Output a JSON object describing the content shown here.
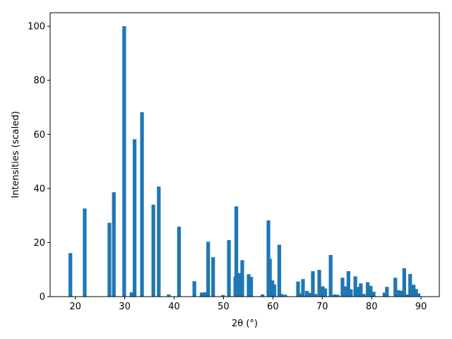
{
  "chart_data": {
    "type": "bar",
    "xlabel": "2θ (°)",
    "ylabel": "Intensities (scaled)",
    "title": "",
    "xlim": [
      14.9,
      93.7
    ],
    "ylim": [
      0,
      105
    ],
    "xticks": [
      20,
      30,
      40,
      50,
      60,
      70,
      80,
      90
    ],
    "yticks": [
      0,
      20,
      40,
      60,
      80,
      100
    ],
    "bar_width_deg": 0.75,
    "grid": false,
    "legend": "none",
    "color": "#1f77b4",
    "series": [
      {
        "x": [
          19.0,
          21.9,
          26.9,
          27.8,
          29.9,
          31.4,
          32.0,
          33.5,
          35.8,
          36.9,
          38.9,
          41.0,
          44.1,
          45.6,
          46.3,
          46.9,
          47.9,
          49.9,
          51.1,
          52.4,
          52.6,
          53.3,
          53.8,
          55.1,
          55.6,
          57.9,
          59.1,
          59.4,
          59.9,
          60.3,
          61.3,
          61.7,
          62.5,
          65.1,
          65.6,
          66.1,
          66.9,
          67.4,
          68.1,
          68.6,
          69.4,
          70.1,
          70.6,
          71.7,
          72.5,
          73.1,
          74.1,
          74.6,
          75.3,
          75.8,
          76.7,
          77.3,
          77.8,
          78.4,
          79.2,
          79.8,
          80.4,
          82.6,
          83.1,
          84.8,
          85.3,
          85.9,
          86.6,
          87.3,
          87.8,
          88.5,
          89.0,
          89.5
        ],
        "values": [
          16.1,
          32.6,
          27.3,
          38.6,
          100.0,
          1.6,
          58.2,
          68.2,
          34.0,
          40.7,
          0.8,
          25.9,
          5.7,
          1.5,
          1.6,
          20.3,
          14.6,
          0.6,
          20.9,
          7.4,
          33.4,
          8.7,
          13.5,
          8.3,
          7.3,
          0.8,
          28.2,
          14.0,
          6.0,
          4.5,
          19.2,
          1.0,
          0.7,
          5.6,
          1.2,
          6.5,
          2.1,
          1.4,
          9.4,
          1.0,
          9.9,
          3.8,
          3.0,
          15.4,
          0.8,
          0.7,
          7.0,
          3.8,
          9.4,
          2.7,
          7.5,
          3.6,
          4.9,
          1.0,
          5.3,
          4.0,
          1.8,
          1.5,
          3.6,
          7.0,
          2.4,
          2.2,
          10.5,
          0.8,
          8.4,
          4.4,
          2.8,
          1.2
        ]
      }
    ]
  }
}
